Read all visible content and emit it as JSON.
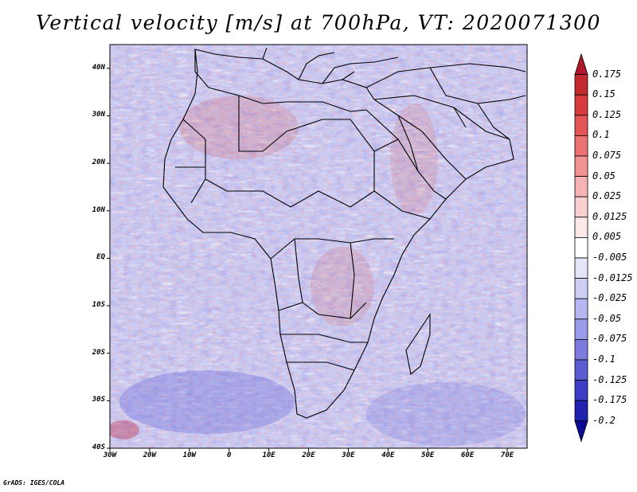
{
  "title": "Vertical velocity [m/s] at 700hPa, VT: 2020071300",
  "map": {
    "lat_ticks": [
      "40N",
      "30N",
      "20N",
      "10N",
      "EQ",
      "10S",
      "20S",
      "30S",
      "40S"
    ],
    "lon_ticks": [
      "30W",
      "20W",
      "10W",
      "0",
      "10E",
      "20E",
      "30E",
      "40E",
      "50E",
      "60E",
      "70E"
    ],
    "lat_range": [
      -40,
      45
    ],
    "lon_range": [
      -30,
      75
    ]
  },
  "colorbar": {
    "labels": [
      "0.175",
      "0.15",
      "0.125",
      "0.1",
      "0.075",
      "0.05",
      "0.025",
      "0.0125",
      "0.005",
      "-0.005",
      "-0.0125",
      "-0.025",
      "-0.05",
      "-0.075",
      "-0.1",
      "-0.125",
      "-0.175",
      "-0.2"
    ],
    "colors": [
      "#b2182b",
      "#c22a2e",
      "#d63a3a",
      "#e35555",
      "#ec7272",
      "#f29393",
      "#f6b3b3",
      "#f9d0d0",
      "#fde8e8",
      "#ffffff",
      "#e6e6fb",
      "#cfcff6",
      "#b6b6f0",
      "#9a9ae8",
      "#7c7cde",
      "#5c5cd2",
      "#3c3cc4",
      "#2222b0",
      "#0b0b96"
    ]
  },
  "footer": "GrADS: IGES/COLA"
}
